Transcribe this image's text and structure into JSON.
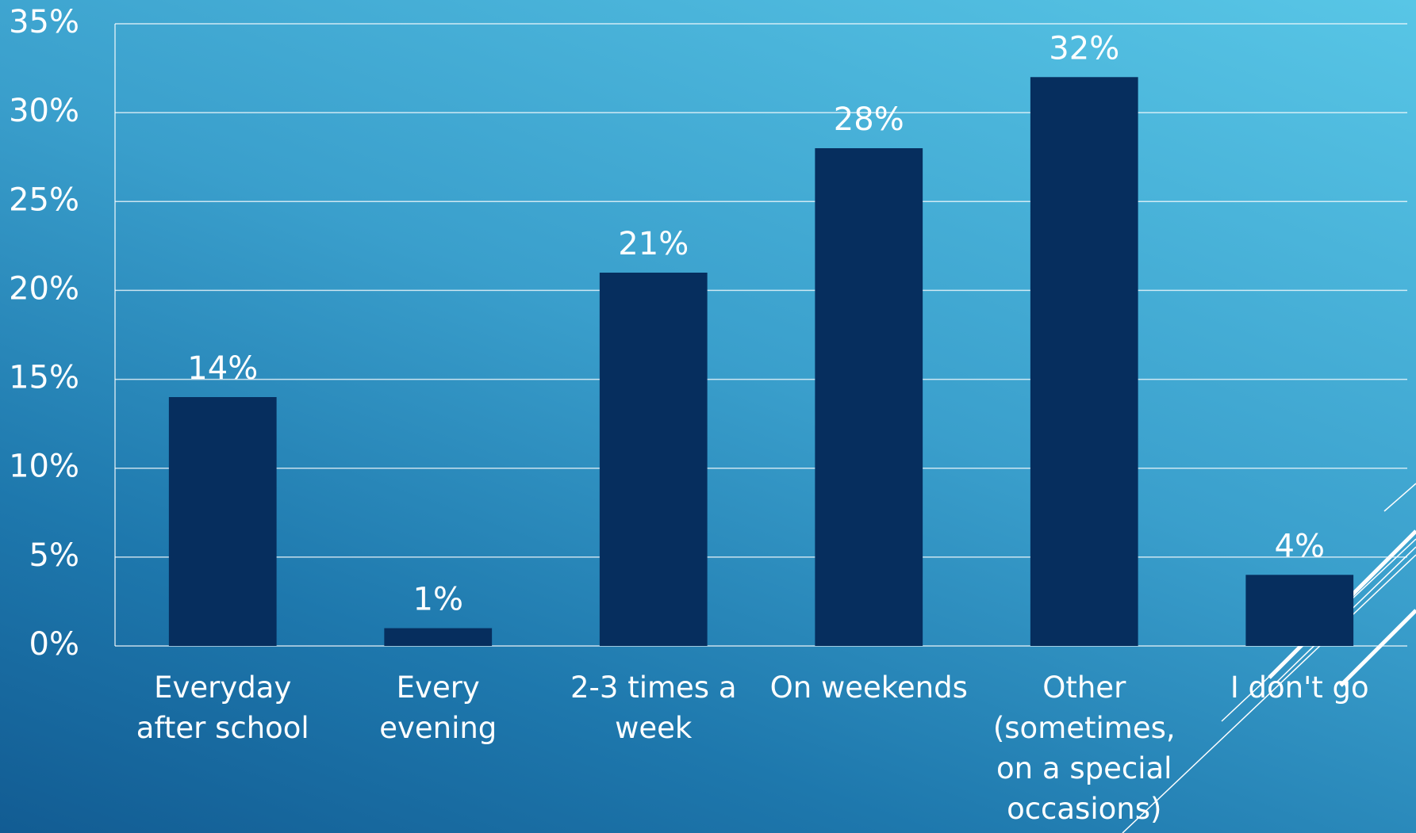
{
  "chart_data": {
    "type": "bar",
    "categories": [
      "Everyday after school",
      "Every evening",
      "2-3 times a week",
      "On weekends",
      "Other (sometimes, on a special occasions)",
      "I don't go"
    ],
    "values": [
      14,
      1,
      21,
      28,
      32,
      4
    ],
    "value_labels": [
      "14%",
      "1%",
      "21%",
      "28%",
      "32%",
      "4%"
    ],
    "color": "#062e5e",
    "ylim": [
      0,
      35
    ],
    "yticks": [
      {
        "value": 0,
        "label": "0%"
      },
      {
        "value": 5,
        "label": "5%"
      },
      {
        "value": 10,
        "label": "10%"
      },
      {
        "value": 15,
        "label": "15%"
      },
      {
        "value": 20,
        "label": "20%"
      },
      {
        "value": 25,
        "label": "25%"
      },
      {
        "value": 30,
        "label": "30%"
      },
      {
        "value": 35,
        "label": "35%"
      }
    ],
    "grid": true
  }
}
